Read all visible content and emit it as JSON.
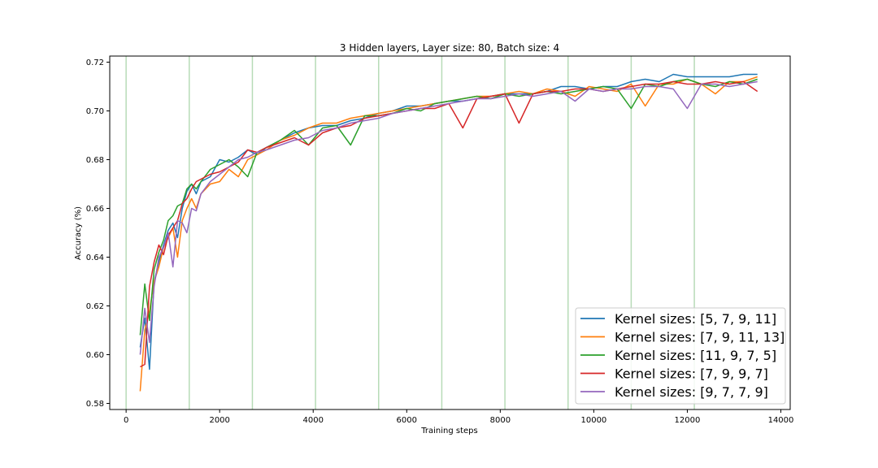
{
  "chart_data": {
    "type": "line",
    "title": "3 Hidden layers, Layer size: 80, Batch size: 4",
    "xlabel": "Training steps",
    "ylabel": "Accuracy (%)",
    "xlim": [
      -350,
      14200
    ],
    "ylim": [
      0.5775,
      0.7225
    ],
    "xticks": [
      0,
      2000,
      4000,
      6000,
      8000,
      10000,
      12000,
      14000
    ],
    "yticks": [
      0.58,
      0.6,
      0.62,
      0.64,
      0.66,
      0.68,
      0.7,
      0.72
    ],
    "xtick_labels": [
      "0",
      "2000",
      "4000",
      "6000",
      "8000",
      "10000",
      "12000",
      "14000"
    ],
    "ytick_labels": [
      "0.58",
      "0.60",
      "0.62",
      "0.64",
      "0.66",
      "0.68",
      "0.70",
      "0.72"
    ],
    "vlines": [
      0,
      1350,
      2700,
      4050,
      5400,
      6750,
      8100,
      9450,
      10800,
      12150
    ],
    "vline_color": "#b7dbb7",
    "legend_position": "lower-right",
    "grid": false,
    "x": [
      300,
      400,
      500,
      600,
      700,
      800,
      900,
      1000,
      1100,
      1200,
      1300,
      1400,
      1500,
      1600,
      1800,
      2000,
      2200,
      2400,
      2600,
      2800,
      3000,
      3300,
      3600,
      3900,
      4200,
      4500,
      4800,
      5100,
      5400,
      5700,
      6000,
      6300,
      6600,
      6900,
      7200,
      7500,
      7800,
      8100,
      8400,
      8700,
      9000,
      9300,
      9600,
      9900,
      10200,
      10500,
      10800,
      11100,
      11400,
      11700,
      12000,
      12300,
      12600,
      12900,
      13200,
      13500
    ],
    "series": [
      {
        "name": "Kernel sizes:  [5, 7, 9, 11]",
        "color": "#1f77b4",
        "values": [
          0.603,
          0.615,
          0.594,
          0.63,
          0.638,
          0.645,
          0.651,
          0.654,
          0.648,
          0.66,
          0.667,
          0.67,
          0.666,
          0.671,
          0.673,
          0.68,
          0.679,
          0.681,
          0.684,
          0.682,
          0.685,
          0.688,
          0.691,
          0.693,
          0.694,
          0.694,
          0.696,
          0.697,
          0.699,
          0.7,
          0.702,
          0.702,
          0.703,
          0.704,
          0.704,
          0.705,
          0.706,
          0.707,
          0.707,
          0.707,
          0.708,
          0.71,
          0.71,
          0.709,
          0.71,
          0.71,
          0.712,
          0.713,
          0.712,
          0.715,
          0.714,
          0.714,
          0.714,
          0.714,
          0.715,
          0.715
        ]
      },
      {
        "name": "Kernel sizes:  [7, 9, 11, 13]",
        "color": "#ff7f0e",
        "values": [
          0.585,
          0.61,
          0.618,
          0.63,
          0.636,
          0.644,
          0.648,
          0.652,
          0.64,
          0.655,
          0.66,
          0.664,
          0.66,
          0.666,
          0.67,
          0.671,
          0.676,
          0.673,
          0.68,
          0.682,
          0.684,
          0.688,
          0.69,
          0.693,
          0.695,
          0.695,
          0.697,
          0.698,
          0.699,
          0.7,
          0.701,
          0.702,
          0.703,
          0.704,
          0.705,
          0.706,
          0.706,
          0.707,
          0.708,
          0.707,
          0.709,
          0.708,
          0.706,
          0.71,
          0.709,
          0.708,
          0.711,
          0.702,
          0.711,
          0.711,
          0.713,
          0.711,
          0.707,
          0.712,
          0.712,
          0.714
        ]
      },
      {
        "name": "Kernel sizes:  [11, 9, 7, 5]",
        "color": "#2ca02c",
        "values": [
          0.608,
          0.629,
          0.614,
          0.635,
          0.642,
          0.647,
          0.655,
          0.657,
          0.661,
          0.662,
          0.668,
          0.67,
          0.668,
          0.671,
          0.676,
          0.678,
          0.68,
          0.677,
          0.673,
          0.683,
          0.685,
          0.688,
          0.692,
          0.686,
          0.693,
          0.694,
          0.686,
          0.698,
          0.698,
          0.699,
          0.701,
          0.7,
          0.703,
          0.704,
          0.705,
          0.706,
          0.705,
          0.707,
          0.706,
          0.707,
          0.708,
          0.707,
          0.708,
          0.709,
          0.71,
          0.709,
          0.701,
          0.711,
          0.71,
          0.712,
          0.713,
          0.711,
          0.71,
          0.712,
          0.711,
          0.713
        ]
      },
      {
        "name": "Kernel sizes:  [7, 9, 9, 7]",
        "color": "#d62728",
        "values": [
          0.595,
          0.596,
          0.628,
          0.638,
          0.645,
          0.641,
          0.649,
          0.652,
          0.655,
          0.662,
          0.664,
          0.668,
          0.671,
          0.672,
          0.674,
          0.675,
          0.677,
          0.679,
          0.684,
          0.683,
          0.685,
          0.687,
          0.689,
          0.686,
          0.691,
          0.693,
          0.694,
          0.697,
          0.698,
          0.699,
          0.7,
          0.701,
          0.701,
          0.703,
          0.693,
          0.705,
          0.706,
          0.707,
          0.695,
          0.707,
          0.708,
          0.708,
          0.709,
          0.709,
          0.708,
          0.709,
          0.71,
          0.711,
          0.711,
          0.712,
          0.711,
          0.711,
          0.712,
          0.711,
          0.712,
          0.708
        ]
      },
      {
        "name": "Kernel sizes:  [9, 7, 7, 9]",
        "color": "#9467bd",
        "values": [
          0.6,
          0.619,
          0.605,
          0.628,
          0.64,
          0.644,
          0.65,
          0.636,
          0.655,
          0.654,
          0.65,
          0.66,
          0.659,
          0.666,
          0.671,
          0.674,
          0.677,
          0.68,
          0.681,
          0.683,
          0.684,
          0.686,
          0.688,
          0.689,
          0.692,
          0.693,
          0.695,
          0.696,
          0.697,
          0.699,
          0.7,
          0.701,
          0.702,
          0.703,
          0.704,
          0.705,
          0.705,
          0.706,
          0.707,
          0.706,
          0.707,
          0.708,
          0.704,
          0.709,
          0.708,
          0.709,
          0.709,
          0.71,
          0.71,
          0.709,
          0.701,
          0.711,
          0.711,
          0.71,
          0.711,
          0.712
        ]
      }
    ]
  }
}
